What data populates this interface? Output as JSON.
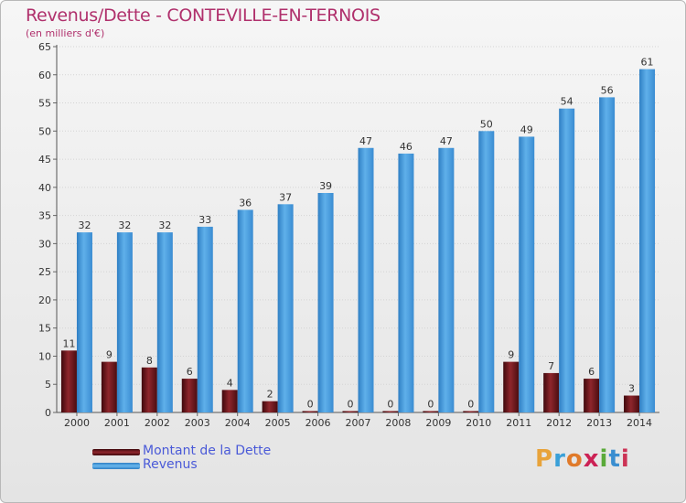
{
  "header": {
    "title": "Revenus/Dette - CONTEVILLE-EN-TERNOIS",
    "subtitle": "(en milliers d'€)"
  },
  "legend": [
    {
      "label": "Montant de la Dette",
      "color": "#7a1a1f"
    },
    {
      "label": "Revenus",
      "color": "#4aa0e0"
    }
  ],
  "logo": {
    "text": "Proxiti",
    "letters": [
      "P",
      "r",
      "o",
      "x",
      "i",
      "t",
      "i"
    ],
    "letter_colors": [
      "#e8a33a",
      "#3aa0d8",
      "#e07a2a",
      "#cc2255",
      "#5aaa3a",
      "#3a8ed0",
      "#cc3355"
    ]
  },
  "chart_data": {
    "type": "bar",
    "categories": [
      "2000",
      "2001",
      "2002",
      "2003",
      "2004",
      "2005",
      "2006",
      "2007",
      "2008",
      "2009",
      "2010",
      "2011",
      "2012",
      "2013",
      "2014"
    ],
    "series": [
      {
        "name": "Montant de la Dette",
        "values": [
          11,
          9,
          8,
          6,
          4,
          2,
          0,
          0,
          0,
          0,
          0,
          9,
          7,
          6,
          3
        ]
      },
      {
        "name": "Revenus",
        "values": [
          32,
          32,
          32,
          33,
          36,
          37,
          39,
          47,
          46,
          47,
          50,
          49,
          54,
          56,
          61
        ]
      }
    ],
    "ylim": [
      0,
      65
    ],
    "yticks": [
      0,
      5,
      10,
      15,
      20,
      25,
      30,
      35,
      40,
      45,
      50,
      55,
      60,
      65
    ],
    "grid": true,
    "legend_position": "bottom-left"
  }
}
